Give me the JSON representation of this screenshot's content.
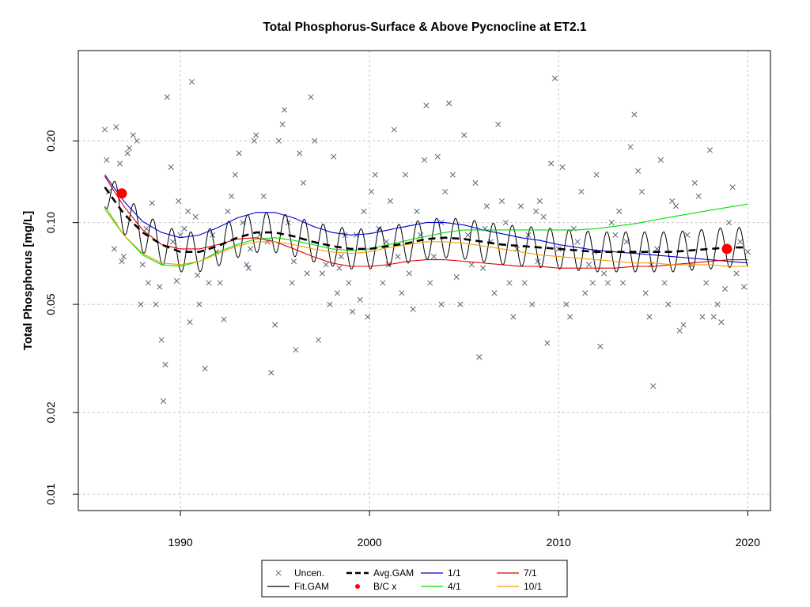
{
  "chart_data": {
    "type": "scatter",
    "title": "Total Phosphorus-Surface & Above Pycnocline at ET2.1",
    "xlabel": "",
    "ylabel": "Total Phosphorus [mg/L]",
    "log_y": true,
    "xlim": [
      1984.6,
      2021.2
    ],
    "ylim": [
      0.0087,
      0.43
    ],
    "x_ticks": [
      1990,
      2000,
      2010,
      2020
    ],
    "x_tick_labels": [
      "1990",
      "2000",
      "2010",
      "2020"
    ],
    "y_ticks": [
      0.01,
      0.02,
      0.05,
      0.1,
      0.2
    ],
    "y_tick_labels": [
      "0.01",
      "0.02",
      "0.05",
      "0.10",
      "0.20"
    ],
    "grid": true,
    "legend_position": "bottom-center",
    "colors": {
      "uncensored": "#5a6478",
      "fit_gam": "#000000",
      "avg_gam": "#000000",
      "bc": "#ff0000",
      "s_1_1": "#0000cc",
      "s_4_1": "#00dd00",
      "s_7_1": "#dd0000",
      "s_10_1": "#f0a000"
    },
    "legend": [
      {
        "label": "Uncen.",
        "symbol": "x"
      },
      {
        "label": "Avg.GAM",
        "symbol": "dash"
      },
      {
        "label": "1/1",
        "symbol": "line-blue"
      },
      {
        "label": "7/1",
        "symbol": "line-red"
      },
      {
        "label": "Fit.GAM",
        "symbol": "line-black"
      },
      {
        "label": "B/C x",
        "symbol": "dot-red"
      },
      {
        "label": "4/1",
        "symbol": "line-green"
      },
      {
        "label": "10/1",
        "symbol": "line-orange"
      }
    ],
    "bc_points": [
      {
        "x": 1986.9,
        "y": 0.128
      },
      {
        "x": 2018.9,
        "y": 0.08
      }
    ],
    "avg_gam": {
      "x": [
        1986,
        1987,
        1988,
        1989,
        1990,
        1991,
        1992,
        1993,
        1994,
        1995,
        1996,
        1997,
        1998,
        1999,
        2000,
        2001,
        2002,
        2003,
        2004,
        2005,
        2006,
        2007,
        2008,
        2009,
        2010,
        2011,
        2012,
        2013,
        2014,
        2015,
        2016,
        2017,
        2018,
        2019,
        2020
      ],
      "y": [
        0.135,
        0.108,
        0.092,
        0.083,
        0.078,
        0.078,
        0.082,
        0.088,
        0.092,
        0.092,
        0.089,
        0.085,
        0.082,
        0.08,
        0.08,
        0.082,
        0.084,
        0.087,
        0.088,
        0.087,
        0.085,
        0.083,
        0.082,
        0.081,
        0.08,
        0.079,
        0.078,
        0.078,
        0.078,
        0.078,
        0.078,
        0.079,
        0.08,
        0.081,
        0.081
      ]
    },
    "fit_gam": {
      "seasonal_amplitude": 0.17,
      "x_range": [
        1986,
        2020
      ]
    },
    "series": [
      {
        "name": "1/1",
        "x": [
          1986,
          1987,
          1988,
          1989,
          1990,
          1991,
          1992,
          1993,
          1994,
          1995,
          1996,
          1997,
          1998,
          1999,
          2000,
          2001,
          2002,
          2003,
          2004,
          2005,
          2006,
          2007,
          2008,
          2009,
          2010,
          2011,
          2012,
          2013,
          2014,
          2015,
          2016,
          2017,
          2018,
          2019,
          2020
        ],
        "y": [
          0.15,
          0.12,
          0.101,
          0.092,
          0.088,
          0.09,
          0.096,
          0.104,
          0.109,
          0.109,
          0.104,
          0.097,
          0.092,
          0.09,
          0.091,
          0.094,
          0.097,
          0.1,
          0.1,
          0.098,
          0.094,
          0.091,
          0.088,
          0.086,
          0.083,
          0.081,
          0.079,
          0.078,
          0.077,
          0.076,
          0.075,
          0.074,
          0.073,
          0.072,
          0.071
        ]
      },
      {
        "name": "4/1",
        "x": [
          1986,
          1987,
          1988,
          1989,
          1990,
          1991,
          1992,
          1993,
          1994,
          1995,
          1996,
          1997,
          1998,
          1999,
          2000,
          2001,
          2002,
          2003,
          2004,
          2005,
          2006,
          2007,
          2008,
          2009,
          2010,
          2011,
          2012,
          2013,
          2014,
          2015,
          2016,
          2017,
          2018,
          2019,
          2020
        ],
        "y": [
          0.115,
          0.09,
          0.076,
          0.07,
          0.069,
          0.072,
          0.078,
          0.083,
          0.087,
          0.088,
          0.086,
          0.083,
          0.08,
          0.079,
          0.08,
          0.083,
          0.086,
          0.089,
          0.092,
          0.094,
          0.094,
          0.094,
          0.094,
          0.094,
          0.094,
          0.094,
          0.095,
          0.097,
          0.099,
          0.102,
          0.105,
          0.108,
          0.111,
          0.114,
          0.117
        ]
      },
      {
        "name": "7/1",
        "x": [
          1986,
          1987,
          1988,
          1989,
          1990,
          1991,
          1992,
          1993,
          1994,
          1995,
          1996,
          1997,
          1998,
          1999,
          2000,
          2001,
          2002,
          2003,
          2004,
          2005,
          2006,
          2007,
          2008,
          2009,
          2010,
          2011,
          2012,
          2013,
          2014,
          2015,
          2016,
          2017,
          2018,
          2019,
          2020
        ],
        "y": [
          0.148,
          0.115,
          0.094,
          0.083,
          0.08,
          0.08,
          0.083,
          0.087,
          0.088,
          0.085,
          0.08,
          0.075,
          0.071,
          0.069,
          0.069,
          0.07,
          0.072,
          0.073,
          0.073,
          0.072,
          0.071,
          0.07,
          0.069,
          0.069,
          0.068,
          0.068,
          0.068,
          0.068,
          0.069,
          0.069,
          0.07,
          0.071,
          0.072,
          0.073,
          0.073
        ]
      },
      {
        "name": "10/1",
        "x": [
          1986,
          1987,
          1988,
          1989,
          1990,
          1991,
          1992,
          1993,
          1994,
          1995,
          1996,
          1997,
          1998,
          1999,
          2000,
          2001,
          2002,
          2003,
          2004,
          2005,
          2006,
          2007,
          2008,
          2009,
          2010,
          2011,
          2012,
          2013,
          2014,
          2015,
          2016,
          2017,
          2018,
          2019,
          2020
        ],
        "y": [
          0.112,
          0.09,
          0.077,
          0.071,
          0.07,
          0.072,
          0.077,
          0.082,
          0.085,
          0.085,
          0.083,
          0.08,
          0.078,
          0.077,
          0.078,
          0.081,
          0.083,
          0.085,
          0.085,
          0.084,
          0.082,
          0.08,
          0.078,
          0.076,
          0.075,
          0.074,
          0.073,
          0.072,
          0.071,
          0.071,
          0.07,
          0.07,
          0.07,
          0.069,
          0.069
        ]
      }
    ],
    "uncensored_points": [
      [
        1986.0,
        0.22
      ],
      [
        1986.1,
        0.17
      ],
      [
        1986.2,
        0.13
      ],
      [
        1986.5,
        0.08
      ],
      [
        1986.6,
        0.225
      ],
      [
        1986.8,
        0.165
      ],
      [
        1986.9,
        0.072
      ],
      [
        1987.0,
        0.075
      ],
      [
        1987.2,
        0.18
      ],
      [
        1987.3,
        0.188
      ],
      [
        1987.5,
        0.21
      ],
      [
        1987.7,
        0.2
      ],
      [
        1987.9,
        0.05
      ],
      [
        1988.0,
        0.07
      ],
      [
        1988.3,
        0.06
      ],
      [
        1988.5,
        0.118
      ],
      [
        1988.7,
        0.05
      ],
      [
        1988.9,
        0.058
      ],
      [
        1989.0,
        0.037
      ],
      [
        1989.1,
        0.022
      ],
      [
        1989.2,
        0.03
      ],
      [
        1989.3,
        0.29
      ],
      [
        1989.5,
        0.16
      ],
      [
        1989.6,
        0.085
      ],
      [
        1989.8,
        0.061
      ],
      [
        1989.9,
        0.12
      ],
      [
        1990.0,
        0.09
      ],
      [
        1990.2,
        0.095
      ],
      [
        1990.4,
        0.11
      ],
      [
        1990.5,
        0.043
      ],
      [
        1990.6,
        0.33
      ],
      [
        1990.9,
        0.064
      ],
      [
        1991.0,
        0.05
      ],
      [
        1991.3,
        0.029
      ],
      [
        1991.5,
        0.06
      ],
      [
        1991.7,
        0.09
      ],
      [
        1991.9,
        0.078
      ],
      [
        1992.1,
        0.06
      ],
      [
        1992.3,
        0.044
      ],
      [
        1992.5,
        0.11
      ],
      [
        1992.7,
        0.125
      ],
      [
        1992.9,
        0.15
      ],
      [
        1993.1,
        0.18
      ],
      [
        1993.3,
        0.1
      ],
      [
        1993.5,
        0.07
      ],
      [
        1993.7,
        0.08
      ],
      [
        1993.9,
        0.2
      ],
      [
        1994.0,
        0.21
      ],
      [
        1994.2,
        0.09
      ],
      [
        1994.4,
        0.125
      ],
      [
        1994.6,
        0.085
      ],
      [
        1994.8,
        0.028
      ],
      [
        1995.0,
        0.042
      ],
      [
        1995.2,
        0.2
      ],
      [
        1995.4,
        0.23
      ],
      [
        1995.5,
        0.26
      ],
      [
        1995.7,
        0.1
      ],
      [
        1995.9,
        0.06
      ],
      [
        1996.1,
        0.034
      ],
      [
        1996.3,
        0.18
      ],
      [
        1996.5,
        0.14
      ],
      [
        1996.7,
        0.065
      ],
      [
        1996.9,
        0.29
      ],
      [
        1997.1,
        0.2
      ],
      [
        1997.3,
        0.037
      ],
      [
        1997.5,
        0.065
      ],
      [
        1997.7,
        0.07
      ],
      [
        1997.9,
        0.05
      ],
      [
        1998.1,
        0.175
      ],
      [
        1998.3,
        0.055
      ],
      [
        1998.5,
        0.075
      ],
      [
        1998.7,
        0.09
      ],
      [
        1998.9,
        0.06
      ],
      [
        1999.1,
        0.047
      ],
      [
        1999.3,
        0.09
      ],
      [
        1999.5,
        0.052
      ],
      [
        1999.7,
        0.11
      ],
      [
        1999.9,
        0.045
      ],
      [
        2000.1,
        0.13
      ],
      [
        2000.3,
        0.15
      ],
      [
        2000.5,
        0.095
      ],
      [
        2000.7,
        0.06
      ],
      [
        2000.9,
        0.085
      ],
      [
        2001.1,
        0.12
      ],
      [
        2001.3,
        0.22
      ],
      [
        2001.5,
        0.075
      ],
      [
        2001.7,
        0.055
      ],
      [
        2001.9,
        0.15
      ],
      [
        2002.1,
        0.065
      ],
      [
        2002.3,
        0.048
      ],
      [
        2002.5,
        0.11
      ],
      [
        2002.7,
        0.09
      ],
      [
        2002.9,
        0.17
      ],
      [
        2003.0,
        0.27
      ],
      [
        2003.2,
        0.06
      ],
      [
        2003.4,
        0.075
      ],
      [
        2003.6,
        0.175
      ],
      [
        2003.8,
        0.05
      ],
      [
        2004.0,
        0.13
      ],
      [
        2004.2,
        0.275
      ],
      [
        2004.4,
        0.15
      ],
      [
        2004.6,
        0.063
      ],
      [
        2004.8,
        0.05
      ],
      [
        2005.0,
        0.21
      ],
      [
        2005.2,
        0.09
      ],
      [
        2005.4,
        0.07
      ],
      [
        2005.6,
        0.14
      ],
      [
        2005.8,
        0.032
      ],
      [
        2006.0,
        0.068
      ],
      [
        2006.2,
        0.115
      ],
      [
        2006.4,
        0.085
      ],
      [
        2006.6,
        0.055
      ],
      [
        2006.8,
        0.23
      ],
      [
        2007.0,
        0.12
      ],
      [
        2007.2,
        0.1
      ],
      [
        2007.4,
        0.06
      ],
      [
        2007.6,
        0.045
      ],
      [
        2007.8,
        0.08
      ],
      [
        2008.0,
        0.115
      ],
      [
        2008.2,
        0.06
      ],
      [
        2008.4,
        0.09
      ],
      [
        2008.6,
        0.05
      ],
      [
        2008.8,
        0.11
      ],
      [
        2009.0,
        0.12
      ],
      [
        2009.2,
        0.105
      ],
      [
        2009.4,
        0.036
      ],
      [
        2009.6,
        0.165
      ],
      [
        2009.8,
        0.34
      ],
      [
        2010.0,
        0.08
      ],
      [
        2010.2,
        0.16
      ],
      [
        2010.4,
        0.05
      ],
      [
        2010.6,
        0.045
      ],
      [
        2010.8,
        0.095
      ],
      [
        2011.0,
        0.085
      ],
      [
        2011.2,
        0.13
      ],
      [
        2011.4,
        0.055
      ],
      [
        2011.6,
        0.07
      ],
      [
        2011.8,
        0.06
      ],
      [
        2012.0,
        0.15
      ],
      [
        2012.2,
        0.035
      ],
      [
        2012.4,
        0.065
      ],
      [
        2012.6,
        0.06
      ],
      [
        2012.8,
        0.1
      ],
      [
        2013.0,
        0.09
      ],
      [
        2013.2,
        0.11
      ],
      [
        2013.4,
        0.06
      ],
      [
        2013.6,
        0.085
      ],
      [
        2013.8,
        0.19
      ],
      [
        2014.0,
        0.25
      ],
      [
        2014.2,
        0.155
      ],
      [
        2014.4,
        0.13
      ],
      [
        2014.6,
        0.055
      ],
      [
        2014.8,
        0.045
      ],
      [
        2015.0,
        0.025
      ],
      [
        2015.2,
        0.08
      ],
      [
        2015.4,
        0.17
      ],
      [
        2015.6,
        0.06
      ],
      [
        2015.8,
        0.05
      ],
      [
        2016.0,
        0.12
      ],
      [
        2016.2,
        0.115
      ],
      [
        2016.4,
        0.04
      ],
      [
        2016.6,
        0.042
      ],
      [
        2016.8,
        0.09
      ],
      [
        2017.0,
        0.07
      ],
      [
        2017.2,
        0.14
      ],
      [
        2017.4,
        0.125
      ],
      [
        2017.6,
        0.045
      ],
      [
        2017.8,
        0.06
      ],
      [
        2018.0,
        0.185
      ],
      [
        2018.2,
        0.045
      ],
      [
        2018.4,
        0.05
      ],
      [
        2018.6,
        0.043
      ],
      [
        2018.8,
        0.057
      ],
      [
        2019.0,
        0.1
      ],
      [
        2019.2,
        0.135
      ],
      [
        2019.4,
        0.065
      ],
      [
        2019.6,
        0.085
      ],
      [
        2019.8,
        0.058
      ],
      [
        2020.0,
        0.078
      ],
      [
        1988.2,
        0.095
      ],
      [
        1990.8,
        0.105
      ],
      [
        1993.6,
        0.068
      ],
      [
        1996.0,
        0.072
      ],
      [
        1998.4,
        0.068
      ],
      [
        2001.0,
        0.07
      ],
      [
        2003.8,
        0.1
      ],
      [
        2006.1,
        0.095
      ],
      [
        2008.9,
        0.072
      ],
      [
        2011.9,
        0.078
      ],
      [
        2014.9,
        0.07
      ]
    ]
  }
}
